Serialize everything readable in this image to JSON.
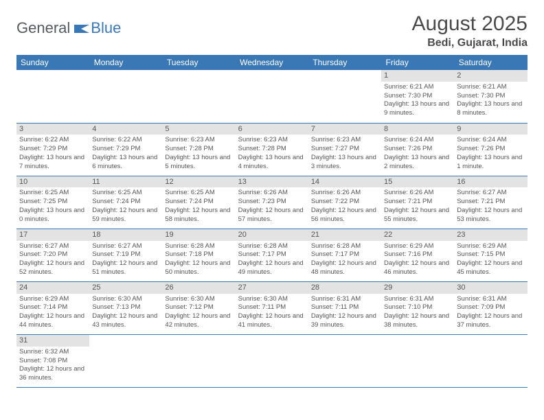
{
  "brand": {
    "part1": "General",
    "part2": "Blue"
  },
  "header": {
    "month_title": "August 2025",
    "location": "Bedi, Gujarat, India"
  },
  "colors": {
    "header_bg": "#3a78b5",
    "header_text": "#ffffff",
    "day_header_bg": "#e3e3e3",
    "border": "#3a78b5",
    "body_text": "#555555",
    "brand_gray": "#555a5f",
    "brand_blue": "#3a78b5",
    "page_bg": "#ffffff"
  },
  "typography": {
    "title_fontsize": 30,
    "location_fontsize": 16,
    "weekday_fontsize": 12,
    "daynum_fontsize": 11,
    "body_fontsize": 9.5
  },
  "weekdays": [
    "Sunday",
    "Monday",
    "Tuesday",
    "Wednesday",
    "Thursday",
    "Friday",
    "Saturday"
  ],
  "weeks": [
    [
      null,
      null,
      null,
      null,
      null,
      {
        "num": "1",
        "sunrise": "Sunrise: 6:21 AM",
        "sunset": "Sunset: 7:30 PM",
        "daylight": "Daylight: 13 hours and 9 minutes."
      },
      {
        "num": "2",
        "sunrise": "Sunrise: 6:21 AM",
        "sunset": "Sunset: 7:30 PM",
        "daylight": "Daylight: 13 hours and 8 minutes."
      }
    ],
    [
      {
        "num": "3",
        "sunrise": "Sunrise: 6:22 AM",
        "sunset": "Sunset: 7:29 PM",
        "daylight": "Daylight: 13 hours and 7 minutes."
      },
      {
        "num": "4",
        "sunrise": "Sunrise: 6:22 AM",
        "sunset": "Sunset: 7:29 PM",
        "daylight": "Daylight: 13 hours and 6 minutes."
      },
      {
        "num": "5",
        "sunrise": "Sunrise: 6:23 AM",
        "sunset": "Sunset: 7:28 PM",
        "daylight": "Daylight: 13 hours and 5 minutes."
      },
      {
        "num": "6",
        "sunrise": "Sunrise: 6:23 AM",
        "sunset": "Sunset: 7:28 PM",
        "daylight": "Daylight: 13 hours and 4 minutes."
      },
      {
        "num": "7",
        "sunrise": "Sunrise: 6:23 AM",
        "sunset": "Sunset: 7:27 PM",
        "daylight": "Daylight: 13 hours and 3 minutes."
      },
      {
        "num": "8",
        "sunrise": "Sunrise: 6:24 AM",
        "sunset": "Sunset: 7:26 PM",
        "daylight": "Daylight: 13 hours and 2 minutes."
      },
      {
        "num": "9",
        "sunrise": "Sunrise: 6:24 AM",
        "sunset": "Sunset: 7:26 PM",
        "daylight": "Daylight: 13 hours and 1 minute."
      }
    ],
    [
      {
        "num": "10",
        "sunrise": "Sunrise: 6:25 AM",
        "sunset": "Sunset: 7:25 PM",
        "daylight": "Daylight: 13 hours and 0 minutes."
      },
      {
        "num": "11",
        "sunrise": "Sunrise: 6:25 AM",
        "sunset": "Sunset: 7:24 PM",
        "daylight": "Daylight: 12 hours and 59 minutes."
      },
      {
        "num": "12",
        "sunrise": "Sunrise: 6:25 AM",
        "sunset": "Sunset: 7:24 PM",
        "daylight": "Daylight: 12 hours and 58 minutes."
      },
      {
        "num": "13",
        "sunrise": "Sunrise: 6:26 AM",
        "sunset": "Sunset: 7:23 PM",
        "daylight": "Daylight: 12 hours and 57 minutes."
      },
      {
        "num": "14",
        "sunrise": "Sunrise: 6:26 AM",
        "sunset": "Sunset: 7:22 PM",
        "daylight": "Daylight: 12 hours and 56 minutes."
      },
      {
        "num": "15",
        "sunrise": "Sunrise: 6:26 AM",
        "sunset": "Sunset: 7:21 PM",
        "daylight": "Daylight: 12 hours and 55 minutes."
      },
      {
        "num": "16",
        "sunrise": "Sunrise: 6:27 AM",
        "sunset": "Sunset: 7:21 PM",
        "daylight": "Daylight: 12 hours and 53 minutes."
      }
    ],
    [
      {
        "num": "17",
        "sunrise": "Sunrise: 6:27 AM",
        "sunset": "Sunset: 7:20 PM",
        "daylight": "Daylight: 12 hours and 52 minutes."
      },
      {
        "num": "18",
        "sunrise": "Sunrise: 6:27 AM",
        "sunset": "Sunset: 7:19 PM",
        "daylight": "Daylight: 12 hours and 51 minutes."
      },
      {
        "num": "19",
        "sunrise": "Sunrise: 6:28 AM",
        "sunset": "Sunset: 7:18 PM",
        "daylight": "Daylight: 12 hours and 50 minutes."
      },
      {
        "num": "20",
        "sunrise": "Sunrise: 6:28 AM",
        "sunset": "Sunset: 7:17 PM",
        "daylight": "Daylight: 12 hours and 49 minutes."
      },
      {
        "num": "21",
        "sunrise": "Sunrise: 6:28 AM",
        "sunset": "Sunset: 7:17 PM",
        "daylight": "Daylight: 12 hours and 48 minutes."
      },
      {
        "num": "22",
        "sunrise": "Sunrise: 6:29 AM",
        "sunset": "Sunset: 7:16 PM",
        "daylight": "Daylight: 12 hours and 46 minutes."
      },
      {
        "num": "23",
        "sunrise": "Sunrise: 6:29 AM",
        "sunset": "Sunset: 7:15 PM",
        "daylight": "Daylight: 12 hours and 45 minutes."
      }
    ],
    [
      {
        "num": "24",
        "sunrise": "Sunrise: 6:29 AM",
        "sunset": "Sunset: 7:14 PM",
        "daylight": "Daylight: 12 hours and 44 minutes."
      },
      {
        "num": "25",
        "sunrise": "Sunrise: 6:30 AM",
        "sunset": "Sunset: 7:13 PM",
        "daylight": "Daylight: 12 hours and 43 minutes."
      },
      {
        "num": "26",
        "sunrise": "Sunrise: 6:30 AM",
        "sunset": "Sunset: 7:12 PM",
        "daylight": "Daylight: 12 hours and 42 minutes."
      },
      {
        "num": "27",
        "sunrise": "Sunrise: 6:30 AM",
        "sunset": "Sunset: 7:11 PM",
        "daylight": "Daylight: 12 hours and 41 minutes."
      },
      {
        "num": "28",
        "sunrise": "Sunrise: 6:31 AM",
        "sunset": "Sunset: 7:11 PM",
        "daylight": "Daylight: 12 hours and 39 minutes."
      },
      {
        "num": "29",
        "sunrise": "Sunrise: 6:31 AM",
        "sunset": "Sunset: 7:10 PM",
        "daylight": "Daylight: 12 hours and 38 minutes."
      },
      {
        "num": "30",
        "sunrise": "Sunrise: 6:31 AM",
        "sunset": "Sunset: 7:09 PM",
        "daylight": "Daylight: 12 hours and 37 minutes."
      }
    ],
    [
      {
        "num": "31",
        "sunrise": "Sunrise: 6:32 AM",
        "sunset": "Sunset: 7:08 PM",
        "daylight": "Daylight: 12 hours and 36 minutes."
      },
      null,
      null,
      null,
      null,
      null,
      null
    ]
  ]
}
